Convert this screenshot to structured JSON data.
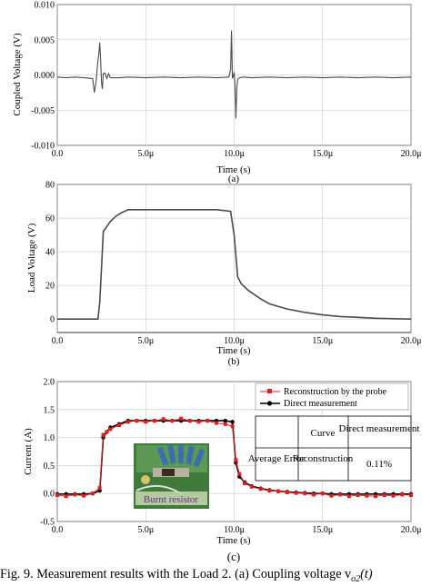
{
  "charts": [
    {
      "id": "a",
      "type": "line",
      "ylabel": "Coupled Voltage (V)",
      "xlabel": "Time (s)",
      "sublabel": "(a)",
      "xlim": [
        0,
        20
      ],
      "ylim": [
        -0.01,
        0.01
      ],
      "xticks": [
        "0.0",
        "5.0μ",
        "10.0μ",
        "15.0μ",
        "20.0μ"
      ],
      "yticks": [
        "0.010",
        "0.005",
        "0.000",
        "-0.005",
        "-0.010"
      ],
      "ytick_values": [
        0.01,
        0.005,
        0.0,
        -0.005,
        -0.01
      ],
      "grid": true,
      "line_color": "#4a4a4a",
      "series": [
        {
          "x": [
            0,
            0.5,
            1,
            1.5,
            2.0,
            2.1,
            2.2,
            2.25,
            2.3,
            2.35,
            2.4,
            2.45,
            2.5,
            2.55,
            2.6,
            2.7,
            2.8,
            2.9,
            3.0,
            3.5,
            4,
            5,
            6,
            7,
            8,
            9,
            9.7,
            9.8,
            9.85,
            9.9,
            9.95,
            10.0,
            10.05,
            10.1,
            10.15,
            10.2,
            10.3,
            10.5,
            11,
            12,
            13,
            14,
            15,
            16,
            17,
            18,
            19,
            20
          ],
          "y": [
            -0.0003,
            -0.0004,
            -0.0003,
            -0.0004,
            -0.0005,
            -0.0025,
            -0.0008,
            0.0008,
            0.002,
            0.003,
            0.0046,
            0.002,
            -0.001,
            -0.002,
            0.0002,
            0.0003,
            -0.0005,
            0.0002,
            -0.0004,
            -0.0004,
            -0.0003,
            -0.0004,
            -0.0003,
            -0.0004,
            -0.0003,
            -0.0004,
            -0.0003,
            0.0008,
            0.0063,
            -0.0005,
            -0.0002,
            0.0004,
            -0.0015,
            -0.0062,
            -0.002,
            -0.0006,
            -0.0004,
            -0.0003,
            -0.0004,
            -0.0003,
            -0.0004,
            -0.0003,
            -0.0004,
            -0.0003,
            -0.0004,
            -0.0003,
            -0.0004,
            -0.0003
          ]
        }
      ]
    },
    {
      "id": "b",
      "type": "line",
      "ylabel": "Load Voltage (V)",
      "xlabel": "Time (s)",
      "sublabel": "(b)",
      "xlim": [
        0,
        20
      ],
      "ylim": [
        -8,
        80
      ],
      "xticks": [
        "0.0",
        "5.0μ",
        "10.0μ",
        "15.0μ",
        "20.0μ"
      ],
      "yticks": [
        "80",
        "60",
        "40",
        "20",
        "0"
      ],
      "ytick_values": [
        80,
        60,
        40,
        20,
        0
      ],
      "grid": true,
      "line_color": "#4a4a4a",
      "series": [
        {
          "x": [
            0,
            1,
            2,
            2.3,
            2.4,
            2.5,
            2.6,
            2.8,
            3.0,
            3.3,
            3.6,
            4.0,
            5,
            6,
            7,
            8,
            9,
            9.8,
            10.0,
            10.2,
            10.4,
            10.8,
            11.5,
            12,
            13,
            14,
            15,
            16,
            17,
            18,
            19,
            20
          ],
          "y": [
            0,
            0,
            0,
            0,
            10,
            30,
            52,
            55,
            58,
            61,
            63,
            65,
            65,
            65,
            65,
            65,
            65,
            64,
            50,
            25,
            21,
            17,
            12,
            9,
            6,
            4,
            2.5,
            1.5,
            1,
            0.5,
            0.2,
            0
          ]
        }
      ]
    },
    {
      "id": "c",
      "type": "line",
      "ylabel": "Current (A)",
      "xlabel": "Time (s)",
      "sublabel": "(c)",
      "xlim": [
        0,
        20
      ],
      "ylim": [
        -0.5,
        2.0
      ],
      "xticks": [
        "0.0",
        "5.0μ",
        "10.0μ",
        "15.0μ",
        "20.0μ"
      ],
      "yticks": [
        "2.0",
        "1.5",
        "1.0",
        "0.5",
        "0.0",
        "-0.5"
      ],
      "ytick_values": [
        2.0,
        1.5,
        1.0,
        0.5,
        0.0,
        -0.5
      ],
      "grid": true,
      "legend": [
        "Reconstruction by the probe",
        "Direct measurement"
      ],
      "series": [
        {
          "name": "Reconstruction by the probe",
          "color": "#e02020",
          "x": [
            0,
            0.5,
            1,
            1.5,
            2.0,
            2.4,
            2.6,
            2.8,
            3.0,
            3.5,
            4.0,
            4.5,
            5.0,
            5.5,
            6.0,
            6.5,
            7.0,
            7.5,
            8.0,
            8.5,
            9.0,
            9.5,
            9.9,
            10.1,
            10.3,
            10.6,
            11,
            11.5,
            12,
            12.5,
            13,
            13.5,
            14,
            14.5,
            15,
            15.5,
            16,
            16.5,
            17,
            17.5,
            18,
            18.5,
            19,
            19.5,
            20
          ],
          "y": [
            -0.03,
            -0.05,
            -0.02,
            -0.04,
            0.0,
            0.1,
            1.05,
            1.1,
            1.15,
            1.22,
            1.28,
            1.3,
            1.28,
            1.3,
            1.33,
            1.3,
            1.34,
            1.3,
            1.28,
            1.3,
            1.26,
            1.24,
            1.2,
            0.6,
            0.35,
            0.18,
            0.12,
            0.08,
            0.05,
            0.04,
            0.02,
            0.01,
            0.0,
            -0.02,
            0.0,
            -0.04,
            -0.02,
            -0.05,
            -0.03,
            -0.04,
            -0.05,
            -0.03,
            -0.04,
            -0.02,
            -0.03
          ]
        },
        {
          "name": "Direct measurement",
          "color": "#000000",
          "x": [
            0,
            0.5,
            1,
            1.5,
            2.0,
            2.4,
            2.6,
            2.8,
            3.0,
            3.5,
            4.0,
            4.5,
            5.0,
            5.5,
            6.0,
            6.5,
            7.0,
            7.5,
            8.0,
            8.5,
            9.0,
            9.5,
            9.9,
            10.1,
            10.3,
            10.6,
            11,
            11.5,
            12,
            12.5,
            13,
            13.5,
            14,
            14.5,
            15,
            15.5,
            16,
            16.5,
            17,
            17.5,
            18,
            18.5,
            19,
            19.5,
            20
          ],
          "y": [
            -0.01,
            -0.01,
            -0.01,
            -0.01,
            0.0,
            0.05,
            1.0,
            1.1,
            1.18,
            1.24,
            1.3,
            1.3,
            1.3,
            1.3,
            1.3,
            1.3,
            1.3,
            1.3,
            1.3,
            1.3,
            1.3,
            1.3,
            1.28,
            0.55,
            0.3,
            0.2,
            0.13,
            0.09,
            0.06,
            0.04,
            0.03,
            0.02,
            0.01,
            0.0,
            0.0,
            -0.01,
            -0.01,
            -0.01,
            -0.01,
            -0.01,
            -0.01,
            -0.01,
            -0.01,
            -0.01,
            -0.01
          ]
        }
      ],
      "inset_table": {
        "header": [
          "",
          "Curve",
          "Direct measurement"
        ],
        "row": [
          "Average Error",
          "Reconstruction",
          "0.11%"
        ]
      },
      "inset_photo": {
        "label": "Burnt resistor"
      }
    }
  ],
  "caption": "Fig. 9.    Measurement results with the Load 2. (a) Coupling voltage v",
  "caption_math": "o2",
  "caption_tail": "(t)"
}
